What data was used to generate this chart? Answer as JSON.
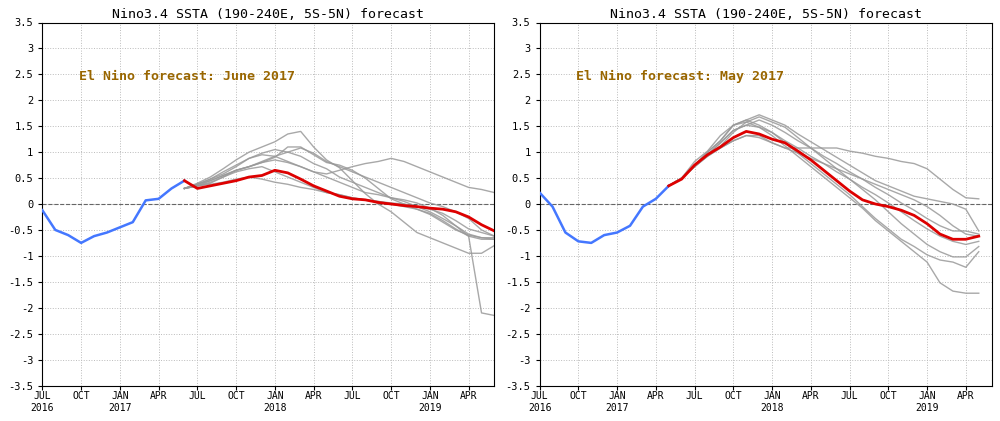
{
  "title": "Nino3.4 SSTA (190-240E, 5S-5N) forecast",
  "annotation_june": "El Nino forecast: June 2017",
  "annotation_may": "El Nino forecast: May 2017",
  "ylim": [
    -3.5,
    3.5
  ],
  "yticks": [
    -3.5,
    -3.0,
    -2.5,
    -2.0,
    -1.5,
    -1.0,
    -0.5,
    0.0,
    0.5,
    1.0,
    1.5,
    2.0,
    2.5,
    3.0,
    3.5
  ],
  "bg_color": "#ffffff",
  "grid_color": "#bbbbbb",
  "blue_color": "#4477ff",
  "red_color": "#dd0000",
  "gray_color": "#999999",
  "annot_color": "#996600",
  "june_blue_x": [
    0,
    1,
    2,
    3,
    4,
    5,
    6,
    7,
    8,
    9,
    10,
    11
  ],
  "june_blue_y": [
    -0.12,
    -0.5,
    -0.6,
    -0.75,
    -0.62,
    -0.55,
    -0.45,
    -0.35,
    0.07,
    0.1,
    0.3,
    0.45
  ],
  "june_red_x": [
    11,
    12,
    13,
    14,
    15,
    16,
    17,
    18,
    19,
    20,
    21,
    22,
    23,
    24,
    25,
    26,
    27,
    28,
    29,
    30,
    31,
    32,
    33,
    34,
    35
  ],
  "june_red_y": [
    0.45,
    0.3,
    0.35,
    0.4,
    0.45,
    0.52,
    0.55,
    0.65,
    0.6,
    0.48,
    0.35,
    0.25,
    0.15,
    0.1,
    0.08,
    0.03,
    0.0,
    -0.03,
    -0.05,
    -0.08,
    -0.1,
    -0.15,
    -0.25,
    -0.4,
    -0.52
  ],
  "june_gray_values": [
    [
      0.3,
      0.38,
      0.45,
      0.55,
      0.65,
      0.72,
      0.8,
      0.9,
      1.1,
      1.1,
      0.95,
      0.8,
      0.75,
      0.65,
      0.5,
      0.3,
      0.1,
      0.0,
      -0.1,
      -0.2,
      -0.35,
      -0.5,
      -0.6,
      -0.65,
      -0.65
    ],
    [
      0.3,
      0.4,
      0.52,
      0.68,
      0.85,
      1.0,
      1.1,
      1.2,
      1.35,
      1.4,
      1.1,
      0.85,
      0.7,
      0.45,
      0.2,
      0.0,
      -0.15,
      -0.35,
      -0.55,
      -0.65,
      -0.75,
      -0.85,
      -0.95,
      -0.95,
      -0.8
    ],
    [
      0.3,
      0.35,
      0.45,
      0.55,
      0.65,
      0.72,
      0.82,
      0.92,
      1.0,
      1.08,
      0.98,
      0.82,
      0.72,
      0.62,
      0.52,
      0.42,
      0.32,
      0.22,
      0.12,
      0.02,
      -0.05,
      -0.15,
      -0.28,
      -0.5,
      -0.62
    ],
    [
      0.3,
      0.38,
      0.48,
      0.58,
      0.72,
      0.88,
      0.98,
      1.05,
      1.0,
      0.92,
      0.78,
      0.68,
      0.52,
      0.42,
      0.32,
      0.22,
      0.12,
      0.05,
      -0.05,
      -0.15,
      -0.28,
      -0.42,
      -0.58,
      -0.65,
      -0.68
    ],
    [
      0.3,
      0.35,
      0.4,
      0.52,
      0.65,
      0.72,
      0.8,
      0.85,
      0.8,
      0.72,
      0.62,
      0.58,
      0.65,
      0.72,
      0.78,
      0.82,
      0.88,
      0.82,
      0.72,
      0.62,
      0.52,
      0.42,
      0.32,
      0.28,
      0.22
    ],
    [
      0.3,
      0.38,
      0.48,
      0.62,
      0.75,
      0.88,
      0.95,
      0.92,
      0.82,
      0.72,
      0.62,
      0.52,
      0.42,
      0.32,
      0.22,
      0.18,
      0.12,
      0.08,
      0.02,
      -0.08,
      -0.22,
      -0.42,
      -0.62,
      -0.68,
      -0.68
    ],
    [
      0.3,
      0.35,
      0.38,
      0.42,
      0.48,
      0.52,
      0.48,
      0.42,
      0.38,
      0.32,
      0.28,
      0.22,
      0.18,
      0.12,
      0.08,
      0.05,
      0.0,
      -0.05,
      -0.1,
      -0.18,
      -0.32,
      -0.48,
      -0.62,
      -2.1,
      -2.15
    ],
    [
      0.3,
      0.35,
      0.42,
      0.52,
      0.62,
      0.68,
      0.72,
      0.62,
      0.52,
      0.42,
      0.32,
      0.22,
      0.18,
      0.12,
      0.08,
      0.05,
      0.02,
      0.0,
      -0.05,
      -0.1,
      -0.18,
      -0.32,
      -0.48,
      -0.55,
      -0.62
    ]
  ],
  "may_blue_x": [
    0,
    1,
    2,
    3,
    4,
    5,
    6,
    7,
    8,
    9,
    10
  ],
  "may_blue_y": [
    0.22,
    -0.05,
    -0.55,
    -0.72,
    -0.75,
    -0.6,
    -0.55,
    -0.42,
    -0.05,
    0.1,
    0.35
  ],
  "may_red_x": [
    10,
    11,
    12,
    13,
    14,
    15,
    16,
    17,
    18,
    19,
    20,
    21,
    22,
    23,
    24,
    25,
    26,
    27,
    28,
    29,
    30,
    31,
    32,
    33,
    34
  ],
  "may_red_y": [
    0.35,
    0.48,
    0.75,
    0.95,
    1.1,
    1.28,
    1.4,
    1.35,
    1.25,
    1.18,
    1.02,
    0.85,
    0.65,
    0.45,
    0.25,
    0.08,
    0.0,
    -0.05,
    -0.12,
    -0.22,
    -0.38,
    -0.58,
    -0.68,
    -0.68,
    -0.62
  ],
  "may_gray_values": [
    [
      0.35,
      0.5,
      0.75,
      1.0,
      1.22,
      1.52,
      1.62,
      1.72,
      1.62,
      1.52,
      1.35,
      1.2,
      1.05,
      0.9,
      0.75,
      0.6,
      0.45,
      0.35,
      0.25,
      0.15,
      0.1,
      0.05,
      0.0,
      -0.1,
      -0.52
    ],
    [
      0.35,
      0.5,
      0.72,
      0.95,
      1.12,
      1.38,
      1.58,
      1.68,
      1.58,
      1.48,
      1.28,
      1.08,
      0.88,
      0.68,
      0.48,
      0.28,
      0.08,
      -0.15,
      -0.38,
      -0.58,
      -0.78,
      -0.92,
      -1.02,
      -1.02,
      -0.82
    ],
    [
      0.35,
      0.5,
      0.82,
      1.02,
      1.32,
      1.52,
      1.58,
      1.48,
      1.32,
      1.12,
      0.92,
      0.72,
      0.52,
      0.32,
      0.12,
      -0.08,
      -0.32,
      -0.52,
      -0.72,
      -0.92,
      -1.12,
      -1.52,
      -1.68,
      -1.72,
      -1.72
    ],
    [
      0.35,
      0.5,
      0.75,
      1.0,
      1.22,
      1.52,
      1.62,
      1.52,
      1.38,
      1.18,
      0.98,
      0.78,
      0.58,
      0.38,
      0.18,
      -0.05,
      -0.28,
      -0.48,
      -0.68,
      -0.82,
      -0.98,
      -1.08,
      -1.12,
      -1.22,
      -0.92
    ],
    [
      0.35,
      0.5,
      0.72,
      0.92,
      1.08,
      1.22,
      1.32,
      1.32,
      1.18,
      1.08,
      1.08,
      1.08,
      1.08,
      1.08,
      1.02,
      0.98,
      0.92,
      0.88,
      0.82,
      0.78,
      0.68,
      0.48,
      0.28,
      0.12,
      0.1
    ],
    [
      0.35,
      0.5,
      0.72,
      0.95,
      1.18,
      1.42,
      1.52,
      1.62,
      1.52,
      1.38,
      1.22,
      1.08,
      0.92,
      0.78,
      0.62,
      0.48,
      0.32,
      0.18,
      0.02,
      -0.12,
      -0.28,
      -0.42,
      -0.52,
      -0.52,
      -0.58
    ],
    [
      0.35,
      0.5,
      0.72,
      0.92,
      1.08,
      1.22,
      1.32,
      1.28,
      1.18,
      1.08,
      0.98,
      0.88,
      0.78,
      0.68,
      0.58,
      0.48,
      0.38,
      0.28,
      0.18,
      0.08,
      -0.05,
      -0.22,
      -0.42,
      -0.58,
      -0.62
    ],
    [
      0.35,
      0.5,
      0.72,
      0.95,
      1.18,
      1.42,
      1.52,
      1.48,
      1.38,
      1.22,
      1.08,
      0.92,
      0.78,
      0.62,
      0.48,
      0.32,
      0.18,
      0.02,
      -0.15,
      -0.32,
      -0.48,
      -0.62,
      -0.72,
      -0.78,
      -0.72
    ]
  ],
  "x_tick_positions": [
    0,
    3,
    6,
    9,
    12,
    15,
    18,
    21,
    24,
    27,
    30,
    33
  ],
  "x_tick_labels": [
    "JUL\n2016",
    "OCT",
    "JAN\n2017",
    "APR",
    "JUL",
    "OCT",
    "JAN\n2018",
    "APR",
    "JUL",
    "OCT",
    "JAN\n2019",
    "APR"
  ]
}
